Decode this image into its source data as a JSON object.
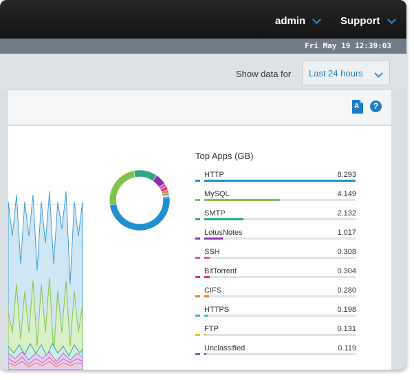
{
  "header": {
    "user_menu": "admin",
    "support_menu": "Support",
    "datetime": "Fri May 19 12:39:03"
  },
  "filter": {
    "show_label": "Show data for",
    "range_value": "Last 24 hours"
  },
  "toolbar": {
    "pdf_icon": "pdf-export-icon",
    "help_icon": "help-icon",
    "help_glyph": "?"
  },
  "top_apps": {
    "title": "Top Apps (GB)",
    "items": [
      {
        "name": "HTTP",
        "value": "8.293",
        "color": "#1f8fd0"
      },
      {
        "name": "MySQL",
        "value": "4.149",
        "color": "#7fc44b"
      },
      {
        "name": "SMTP",
        "value": "2.132",
        "color": "#2ea58a"
      },
      {
        "name": "LotusNotes",
        "value": "1.017",
        "color": "#8e2fb6"
      },
      {
        "name": "SSH",
        "value": "0.308",
        "color": "#e34fc4"
      },
      {
        "name": "BitTorrent",
        "value": "0.304",
        "color": "#e3326b"
      },
      {
        "name": "CIFS",
        "value": "0.280",
        "color": "#f07c22"
      },
      {
        "name": "HTTPS",
        "value": "0.198",
        "color": "#3fb0d0"
      },
      {
        "name": "FTP",
        "value": "0.131",
        "color": "#f2c218"
      },
      {
        "name": "Unclassified",
        "value": "0.119",
        "color": "#7a5cc0"
      }
    ]
  },
  "chart_data": {
    "type": "pie",
    "labels": [
      "HTTP",
      "MySQL",
      "SMTP",
      "LotusNotes",
      "SSH",
      "BitTorrent",
      "CIFS",
      "HTTPS",
      "FTP",
      "Unclassified"
    ],
    "values": [
      8.293,
      4.149,
      2.132,
      1.017,
      0.308,
      0.304,
      0.28,
      0.198,
      0.131,
      0.119
    ],
    "donut": true
  }
}
